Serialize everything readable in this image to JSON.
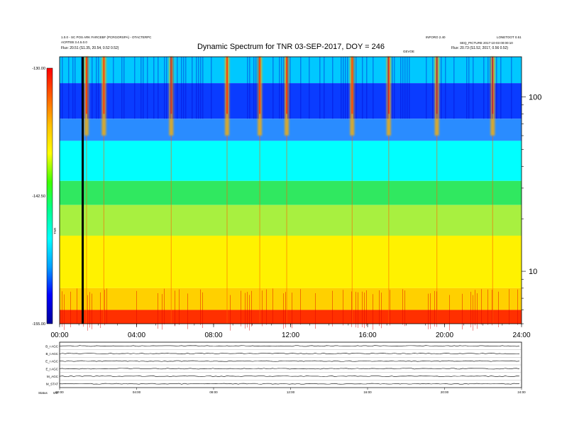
{
  "chart_data": [
    {
      "type": "heatmap",
      "title": "Dynamic Spectrum for TNR 03-SEP-2017, DOY = 246",
      "xlabel": "",
      "ylabel": "",
      "x_tick_labels": [
        "00:00",
        "04:00",
        "08:00",
        "12:00",
        "16:00",
        "20:00",
        "24:00"
      ],
      "x_range_hours": [
        0,
        24
      ],
      "y_scale": "log",
      "y_range": [
        5,
        170
      ],
      "y_tick_values": [
        10,
        100
      ],
      "y_tick_labels": [
        "10",
        "100"
      ],
      "colorbar": {
        "label": "TNR",
        "tick_labels": [
          "-130.00",
          "-142.50",
          "-155.00"
        ],
        "range": [
          -155,
          -130
        ],
        "colors": [
          "#00009a",
          "#0000ff",
          "#00a0ff",
          "#00ffff",
          "#00ff90",
          "#40ff00",
          "#ffff00",
          "#ffc000",
          "#ff6000",
          "#ff0000"
        ]
      },
      "bands": [
        {
          "y_from": 120,
          "y_to": 170,
          "color": "#00c8ff"
        },
        {
          "y_from": 75,
          "y_to": 120,
          "color": "#0a3cff"
        },
        {
          "y_from": 56,
          "y_to": 75,
          "color": "#2a8cff"
        },
        {
          "y_from": 33,
          "y_to": 56,
          "color": "#00ffff"
        },
        {
          "y_from": 24,
          "y_to": 33,
          "color": "#30e860"
        },
        {
          "y_from": 16,
          "y_to": 24,
          "color": "#a8f040"
        },
        {
          "y_from": 8,
          "y_to": 16,
          "color": "#fff200"
        },
        {
          "y_from": 6,
          "y_to": 8,
          "color": "#ffd000"
        },
        {
          "y_from": 5,
          "y_to": 6,
          "color": "#ff3000"
        }
      ],
      "bursts_hours": [
        1.4,
        2.3,
        5.8,
        8.7,
        10.4,
        11.8,
        15.2,
        17.1,
        19.6,
        22.5
      ],
      "data_gap_hour": 1.2,
      "header_left": [
        "1.0.0 - SC POS ARK FARCEBF (PCRGORSPA) - OTACTERPC",
        "ACRTEB 3.4.5.0.0",
        "Flux:  20.51 (S1.35, 20.54, 0.52 0.52)"
      ],
      "header_right": [
        "INFORO 2.40",
        "LONETOOT 0.51",
        "SEQ_PICTURE 2017-10-03 00:00:10",
        "Flux:  20.73 (S1.52, 2017, 0.56 0.52)"
      ],
      "header_center_small": "GEVOE"
    },
    {
      "type": "line",
      "title": "",
      "series": [
        {
          "name": "B_r AGC",
          "baseline": 0.5
        },
        {
          "name": "B_t AGC",
          "baseline": 0.5
        },
        {
          "name": "E_r AGC",
          "baseline": 0.5
        },
        {
          "name": "E_t AGC",
          "baseline": 0.5
        },
        {
          "name": "M_AGC",
          "baseline": 0.5
        },
        {
          "name": "M_STAT",
          "baseline": 0.5
        }
      ],
      "x_tick_labels": [
        "00:00",
        "04:00",
        "08:00",
        "12:00",
        "16:00",
        "20:00",
        "24:00"
      ],
      "bottom_label": "Status",
      "bottom_value": "0/0"
    }
  ]
}
